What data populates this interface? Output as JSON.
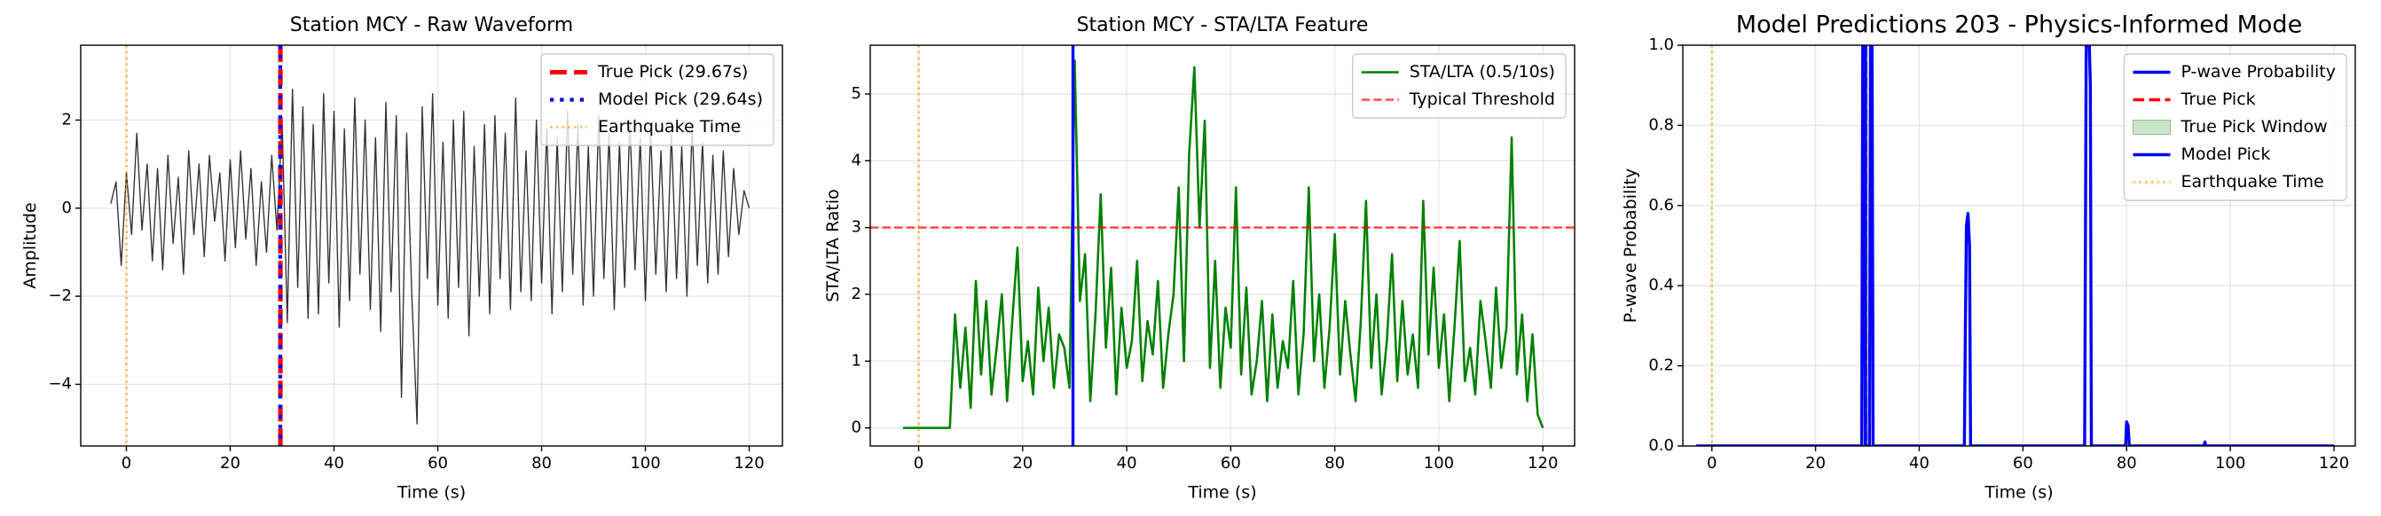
{
  "chart_data": [
    {
      "type": "line",
      "title": "Station MCY - Raw Waveform",
      "xlabel": "Time (s)",
      "ylabel": "Amplitude",
      "xlim": [
        -8.8,
        126.4
      ],
      "xticks": [
        0,
        20,
        40,
        60,
        80,
        100,
        120
      ],
      "ylim": [
        -5.4,
        3.7
      ],
      "yticks": [
        {
          "value": -4,
          "label": "−4"
        },
        {
          "value": -2,
          "label": "−2"
        },
        0,
        2
      ],
      "grid": true,
      "legend": "upper right",
      "layers": [
        {
          "kind": "line",
          "color": "#000000",
          "alpha": 0.8,
          "linewidth": 0.8,
          "style": "solid",
          "x": [
            -3,
            -2,
            -1,
            0,
            1,
            2,
            3,
            4,
            5,
            6,
            7,
            8,
            9,
            10,
            11,
            12,
            13,
            14,
            15,
            16,
            17,
            18,
            19,
            20,
            21,
            22,
            23,
            24,
            25,
            26,
            27,
            28,
            29,
            30,
            31,
            32,
            33,
            34,
            35,
            36,
            37,
            38,
            39,
            40,
            41,
            42,
            43,
            44,
            45,
            46,
            47,
            48,
            49,
            50,
            51,
            52,
            53,
            54,
            55,
            56,
            57,
            58,
            59,
            60,
            61,
            62,
            63,
            64,
            65,
            66,
            67,
            68,
            69,
            70,
            71,
            72,
            73,
            74,
            75,
            76,
            77,
            78,
            79,
            80,
            81,
            82,
            83,
            84,
            85,
            86,
            87,
            88,
            89,
            90,
            91,
            92,
            93,
            94,
            95,
            96,
            97,
            98,
            99,
            100,
            101,
            102,
            103,
            104,
            105,
            106,
            107,
            108,
            109,
            110,
            111,
            112,
            113,
            114,
            115,
            116,
            117,
            118,
            119,
            120
          ],
          "values": [
            0.1,
            0.6,
            -1.3,
            0.8,
            -0.6,
            1.7,
            -0.5,
            1.0,
            -1.2,
            0.9,
            -1.4,
            1.2,
            -0.8,
            0.7,
            -1.5,
            1.3,
            -0.6,
            1.0,
            -1.1,
            1.2,
            -0.3,
            0.8,
            -1.2,
            1.1,
            -0.9,
            1.3,
            -0.7,
            0.9,
            -1.3,
            0.6,
            -1.0,
            1.2,
            -0.5,
            2.0,
            -2.6,
            2.7,
            -1.8,
            2.3,
            -2.5,
            1.9,
            -2.4,
            2.6,
            -1.7,
            2.2,
            -2.7,
            1.8,
            -2.1,
            2.5,
            -1.5,
            2.0,
            -2.3,
            1.6,
            -2.8,
            2.4,
            -1.9,
            2.1,
            -4.3,
            1.7,
            -2.0,
            -4.9,
            2.3,
            -1.6,
            2.6,
            -2.2,
            1.5,
            -2.5,
            2.0,
            -1.8,
            2.2,
            -2.9,
            1.4,
            -2.0,
            1.9,
            -2.4,
            2.1,
            -1.6,
            1.7,
            -2.3,
            2.5,
            -1.9,
            1.3,
            -2.1,
            2.0,
            -1.7,
            1.8,
            -2.4,
            1.6,
            -1.9,
            2.2,
            -1.5,
            1.9,
            -2.2,
            1.4,
            -2.0,
            2.1,
            -1.6,
            1.7,
            -2.3,
            1.5,
            -1.8,
            2.0,
            -1.4,
            1.6,
            -2.1,
            1.8,
            -1.5,
            1.3,
            -1.9,
            1.7,
            -1.6,
            1.4,
            -2.0,
            1.9,
            -1.3,
            1.5,
            -1.7,
            1.2,
            -1.5,
            1.3,
            -1.1,
            0.9,
            -0.6,
            0.4,
            0.0
          ]
        },
        {
          "kind": "vline",
          "name": "True Pick (29.67s)",
          "x": 29.67,
          "color": "#ff0000",
          "linewidth": 3,
          "style": "dashed"
        },
        {
          "kind": "vline",
          "name": "Model Pick (29.64s)",
          "x": 29.64,
          "color": "#0000ff",
          "linewidth": 2.5,
          "style": "dotted"
        },
        {
          "kind": "vline",
          "name": "Earthquake Time",
          "x": 0,
          "color": "#ffa500",
          "alpha": 0.7,
          "linewidth": 1.5,
          "style": "dotted"
        }
      ]
    },
    {
      "type": "line",
      "title": "Station MCY - STA/LTA Feature",
      "xlabel": "Time (s)",
      "ylabel": "STA/LTA Ratio",
      "xlim": [
        -9.3,
        126.1
      ],
      "xticks": [
        0,
        20,
        40,
        60,
        80,
        100,
        120
      ],
      "ylim": [
        -0.27,
        5.73
      ],
      "yticks": [
        0,
        1,
        2,
        3,
        4,
        5
      ],
      "grid": true,
      "legend": "upper right",
      "layers": [
        {
          "kind": "line",
          "name": "STA/LTA (0.5/10s)",
          "color": "#008000",
          "linewidth": 1.5,
          "style": "solid",
          "x": [
            -3,
            -2,
            -1,
            0,
            1,
            2,
            3,
            4,
            5,
            6,
            7,
            8,
            9,
            10,
            11,
            12,
            13,
            14,
            15,
            16,
            17,
            18,
            19,
            20,
            21,
            22,
            23,
            24,
            25,
            26,
            27,
            28,
            29,
            30,
            31,
            32,
            33,
            34,
            35,
            36,
            37,
            38,
            39,
            40,
            41,
            42,
            43,
            44,
            45,
            46,
            47,
            48,
            49,
            50,
            51,
            52,
            53,
            54,
            55,
            56,
            57,
            58,
            59,
            60,
            61,
            62,
            63,
            64,
            65,
            66,
            67,
            68,
            69,
            70,
            71,
            72,
            73,
            74,
            75,
            76,
            77,
            78,
            79,
            80,
            81,
            82,
            83,
            84,
            85,
            86,
            87,
            88,
            89,
            90,
            91,
            92,
            93,
            94,
            95,
            96,
            97,
            98,
            99,
            100,
            101,
            102,
            103,
            104,
            105,
            106,
            107,
            108,
            109,
            110,
            111,
            112,
            113,
            114,
            115,
            116,
            117,
            118,
            119,
            120
          ],
          "values": [
            0,
            0,
            0,
            0,
            0,
            0,
            0,
            0,
            0,
            0,
            1.7,
            0.6,
            1.5,
            0.3,
            2.2,
            0.8,
            1.9,
            0.5,
            1.2,
            2.0,
            0.4,
            1.6,
            2.7,
            0.7,
            1.3,
            0.5,
            2.1,
            1.0,
            1.8,
            0.6,
            1.4,
            1.2,
            0.6,
            5.5,
            1.9,
            2.6,
            0.4,
            1.7,
            3.5,
            1.2,
            2.4,
            0.5,
            1.8,
            0.9,
            1.3,
            2.5,
            0.7,
            1.6,
            1.1,
            2.2,
            0.6,
            1.4,
            2.0,
            3.6,
            1.0,
            4.1,
            5.4,
            3.0,
            4.6,
            0.9,
            2.5,
            0.6,
            1.8,
            1.2,
            3.6,
            0.8,
            2.1,
            0.5,
            1.0,
            1.9,
            0.4,
            1.7,
            0.6,
            1.3,
            0.9,
            2.2,
            0.5,
            1.4,
            3.6,
            1.0,
            2.0,
            0.6,
            1.5,
            2.9,
            0.8,
            1.9,
            1.1,
            0.4,
            1.6,
            3.4,
            0.9,
            2.0,
            0.5,
            1.3,
            2.6,
            0.7,
            1.9,
            0.8,
            1.4,
            0.6,
            3.4,
            1.1,
            2.4,
            0.9,
            1.7,
            0.4,
            1.5,
            2.8,
            0.7,
            1.2,
            0.5,
            1.9,
            1.3,
            0.6,
            2.1,
            0.9,
            1.5,
            4.35,
            0.8,
            1.7,
            0.4,
            1.4,
            0.2,
            0.0
          ]
        },
        {
          "kind": "hline",
          "name": "Typical Threshold",
          "y": 3,
          "color": "#ff0000",
          "alpha": 0.7,
          "linewidth": 1.5,
          "style": "dashed"
        },
        {
          "kind": "vline",
          "x": 29.67,
          "color": "#0000ff",
          "linewidth": 2,
          "style": "solid"
        },
        {
          "kind": "vline",
          "x": 0,
          "color": "#ffa500",
          "alpha": 0.7,
          "linewidth": 1.5,
          "style": "dotted"
        }
      ]
    },
    {
      "type": "line",
      "title": "Model Predictions 203 - Physics-Informed Mode",
      "xlabel": "Time (s)",
      "ylabel": "P-wave Probability",
      "xlim": [
        -5.6,
        124.1
      ],
      "xticks": [
        0,
        20,
        40,
        60,
        80,
        100,
        120
      ],
      "ylim": [
        0,
        1
      ],
      "yticks": [
        {
          "value": 0,
          "label": "0.0"
        },
        0.2,
        0.4,
        0.6,
        0.8,
        {
          "value": 1,
          "label": "1.0"
        }
      ],
      "grid": true,
      "legend": "upper right",
      "layers": [
        {
          "kind": "span",
          "name": "True Pick Window",
          "x": [
            29.17,
            30.17
          ],
          "color": "#008000",
          "alpha": 0.2
        },
        {
          "kind": "line",
          "name": "P-wave Probability",
          "color": "#0000ff",
          "linewidth": 2,
          "style": "solid",
          "x": [
            -3,
            28.9,
            29.1,
            29.3,
            29.6,
            29.8,
            30.4,
            30.6,
            30.9,
            31.1,
            48.7,
            48.9,
            49.1,
            49.4,
            49.7,
            49.9,
            71.7,
            71.9,
            72.2,
            72.8,
            73.0,
            73.2,
            79.8,
            80.0,
            80.3,
            80.5,
            94.9,
            95.1,
            95.3,
            120
          ],
          "values": [
            0,
            0,
            1,
            1,
            0,
            0,
            0,
            1,
            1,
            0,
            0,
            0.3,
            0.55,
            0.58,
            0.5,
            0,
            0,
            0,
            1,
            1,
            0.9,
            0,
            0,
            0.06,
            0.05,
            0,
            0,
            0.01,
            0,
            0
          ]
        },
        {
          "kind": "vline",
          "name": "True Pick",
          "x": 29.67,
          "color": "#ff0000",
          "linewidth": 2,
          "style": "dashed"
        },
        {
          "kind": "vline",
          "name": "Model Pick",
          "x": 29.64,
          "color": "#0000ff",
          "linewidth": 2,
          "style": "solid"
        },
        {
          "kind": "vline",
          "name": "Earthquake Time",
          "x": 0,
          "color": "#ffa500",
          "alpha": 0.7,
          "linewidth": 1.5,
          "style": "dotted"
        }
      ],
      "legend_order": [
        1,
        2,
        0,
        3,
        4
      ]
    }
  ]
}
